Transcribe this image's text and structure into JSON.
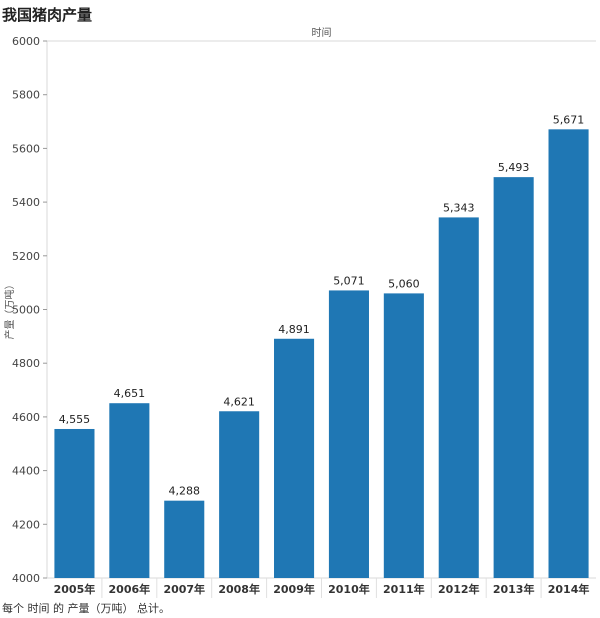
{
  "title": "我国猪肉产量",
  "footnote": "每个 时间 的 产量（万吨） 总计。",
  "chart_data": {
    "type": "bar",
    "title": "我国猪肉产量",
    "xlabel": "时间",
    "ylabel": "产量（万吨）",
    "categories": [
      "2005年",
      "2006年",
      "2007年",
      "2008年",
      "2009年",
      "2010年",
      "2011年",
      "2012年",
      "2013年",
      "2014年"
    ],
    "values": [
      4555,
      4651,
      4288,
      4621,
      4891,
      5071,
      5060,
      5343,
      5493,
      5671
    ],
    "value_labels": [
      "4,555",
      "4,651",
      "4,288",
      "4,621",
      "4,891",
      "5,071",
      "5,060",
      "5,343",
      "5,493",
      "5,671"
    ],
    "ylim": [
      4000,
      6000
    ],
    "yticks": [
      4000,
      4200,
      4400,
      4600,
      4800,
      5000,
      5200,
      5400,
      5600,
      5800,
      6000
    ],
    "bar_color": "#1f77b4",
    "grid": false
  }
}
